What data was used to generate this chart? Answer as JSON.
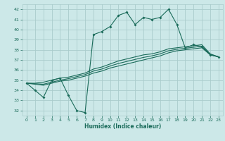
{
  "title": "",
  "xlabel": "Humidex (Indice chaleur)",
  "bg_color": "#cce8e8",
  "grid_color": "#aacccc",
  "line_color": "#1a6b5a",
  "xlim": [
    -0.5,
    23.5
  ],
  "ylim": [
    31.5,
    42.5
  ],
  "xticks": [
    0,
    1,
    2,
    3,
    4,
    5,
    6,
    7,
    8,
    9,
    10,
    11,
    12,
    13,
    14,
    15,
    16,
    17,
    18,
    19,
    20,
    21,
    22,
    23
  ],
  "yticks": [
    32,
    33,
    34,
    35,
    36,
    37,
    38,
    39,
    40,
    41,
    42
  ],
  "series1": [
    34.7,
    34.0,
    33.3,
    35.0,
    35.2,
    33.5,
    32.0,
    31.8,
    39.5,
    39.8,
    40.3,
    41.4,
    41.7,
    40.5,
    41.2,
    41.0,
    41.2,
    42.0,
    40.5,
    38.2,
    38.5,
    38.3,
    37.5,
    37.3
  ],
  "series2": [
    34.7,
    34.6,
    34.5,
    34.7,
    34.9,
    35.0,
    35.2,
    35.4,
    35.7,
    35.9,
    36.2,
    36.4,
    36.6,
    36.8,
    37.0,
    37.2,
    37.4,
    37.7,
    37.9,
    38.0,
    38.1,
    38.2,
    37.5,
    37.3
  ],
  "series3": [
    34.7,
    34.7,
    34.8,
    35.0,
    35.2,
    35.3,
    35.5,
    35.7,
    36.1,
    36.3,
    36.6,
    36.9,
    37.1,
    37.3,
    37.5,
    37.6,
    37.8,
    38.1,
    38.2,
    38.3,
    38.4,
    38.5,
    37.6,
    37.3
  ],
  "series4": [
    34.7,
    34.65,
    34.6,
    34.8,
    35.0,
    35.15,
    35.35,
    35.55,
    35.9,
    36.1,
    36.4,
    36.65,
    36.85,
    37.05,
    37.25,
    37.4,
    37.6,
    37.9,
    38.05,
    38.15,
    38.25,
    38.35,
    37.55,
    37.3
  ]
}
